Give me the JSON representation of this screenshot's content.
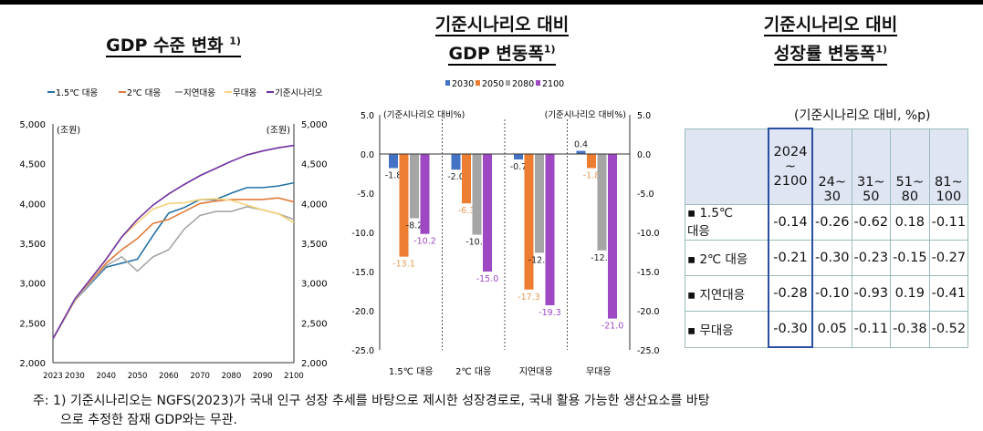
{
  "chart_data": [
    {
      "type": "line",
      "title": "GDP 수준 변화",
      "title_note": "1)",
      "ylabel_left": "(조원)",
      "ylabel_right": "(조원)",
      "ylim": [
        2000,
        5000
      ],
      "yticks": [
        "2,000",
        "2,500",
        "3,000",
        "3,500",
        "4,000",
        "4,500",
        "5,000"
      ],
      "xticks": [
        "2023",
        "2030",
        "2040",
        "2050",
        "2060",
        "2070",
        "2080",
        "2090",
        "2100"
      ],
      "legend": "top",
      "x": [
        2023,
        2030,
        2040,
        2045,
        2050,
        2055,
        2060,
        2065,
        2070,
        2075,
        2080,
        2085,
        2090,
        2095,
        2100
      ],
      "series": [
        {
          "name": "1.5℃ 대응",
          "color": "#2471a3",
          "values": [
            2300,
            2780,
            3200,
            3250,
            3300,
            3600,
            3880,
            3950,
            4050,
            4050,
            4130,
            4200,
            4200,
            4220,
            4260
          ]
        },
        {
          "name": "2℃ 대응",
          "color": "#e07b39",
          "values": [
            2300,
            2780,
            3250,
            3420,
            3560,
            3750,
            3800,
            3900,
            4000,
            4030,
            4050,
            4050,
            4050,
            4070,
            4020
          ]
        },
        {
          "name": "지연대응",
          "color": "#a6a6a6",
          "values": [
            2300,
            2780,
            3220,
            3330,
            3150,
            3330,
            3420,
            3680,
            3850,
            3900,
            3900,
            3960,
            3920,
            3870,
            3800
          ]
        },
        {
          "name": "무대응",
          "color": "#f5d27a",
          "values": [
            2300,
            2790,
            3300,
            3580,
            3760,
            3930,
            4000,
            4010,
            4050,
            4060,
            4040,
            3980,
            3920,
            3870,
            3760
          ]
        },
        {
          "name": "기준시나리오",
          "color": "#7030a0",
          "values": [
            2300,
            2800,
            3300,
            3580,
            3800,
            3980,
            4120,
            4240,
            4350,
            4440,
            4530,
            4610,
            4660,
            4700,
            4730
          ]
        }
      ]
    },
    {
      "type": "bar",
      "title": "기준시나리오 대비",
      "title2": "GDP 변동폭",
      "title_note": "1)",
      "ylabel_left": "(기준시나리오 대비%)",
      "ylabel_right": "(기준시나리오 대비%)",
      "ylim": [
        -25,
        5
      ],
      "yticks": [
        "5.0",
        "0.0",
        "-5.0",
        "-10.0",
        "-15.0",
        "-20.0",
        "-25.0"
      ],
      "legend": "top",
      "categories": [
        "1.5℃ 대응",
        "2℃ 대응",
        "지연대응",
        "무대응"
      ],
      "series": [
        {
          "name": "2030",
          "color": "#4472c4",
          "values": [
            -1.8,
            -2.0,
            -0.7,
            0.4
          ],
          "labels": [
            "-1.8",
            "-2.0",
            "-0.7",
            "0.4"
          ]
        },
        {
          "name": "2050",
          "color": "#ed7d31",
          "values": [
            -13.1,
            -6.3,
            -17.3,
            -1.8
          ],
          "labels": [
            "-13.1",
            "-6.3",
            "-17.3",
            "-1.8"
          ]
        },
        {
          "name": "2080",
          "color": "#a5a5a5",
          "values": [
            -8.2,
            -10.3,
            -12.6,
            -12.3
          ],
          "labels": [
            "-8.2",
            "-10.3",
            "-12.6",
            "-12.3"
          ]
        },
        {
          "name": "2100",
          "color": "#9e48c4",
          "values": [
            -10.2,
            -15.0,
            -19.3,
            -21.0
          ],
          "labels": [
            "-10.2",
            "-15.0",
            "-19.3",
            "-21.0"
          ]
        }
      ]
    },
    {
      "type": "table",
      "title": "기준시나리오 대비",
      "title2": "성장률 변동폭",
      "title_note": "1)",
      "caption": "(기준시나리오 대비, %p)",
      "columns": [
        "2024\n~\n2100",
        "24~\n30",
        "31~\n50",
        "51~\n80",
        "81~\n100"
      ],
      "rows": [
        {
          "label": "▪ 1.5℃\n대응",
          "values": [
            "-0.14",
            "-0.26",
            "-0.62",
            "0.18",
            "-0.11"
          ]
        },
        {
          "label": "▪ 2℃ 대응",
          "values": [
            "-0.21",
            "-0.30",
            "-0.23",
            "-0.15",
            "-0.27"
          ]
        },
        {
          "label": "▪ 지연대응",
          "values": [
            "-0.28",
            "-0.10",
            "-0.93",
            "0.19",
            "-0.41"
          ]
        },
        {
          "label": "▪ 무대응",
          "values": [
            "-0.30",
            "0.05",
            "-0.11",
            "-0.38",
            "-0.52"
          ]
        }
      ]
    }
  ],
  "footnote": {
    "line1": "주: 1) 기준시나리오는 NGFS(2023)가 국내 인구 성장 추세를 바탕으로 제시한 성장경로로, 국내 활용 가능한 생산요소를 바탕",
    "line2": "으로 추정한 잠재 GDP와는 무관."
  }
}
